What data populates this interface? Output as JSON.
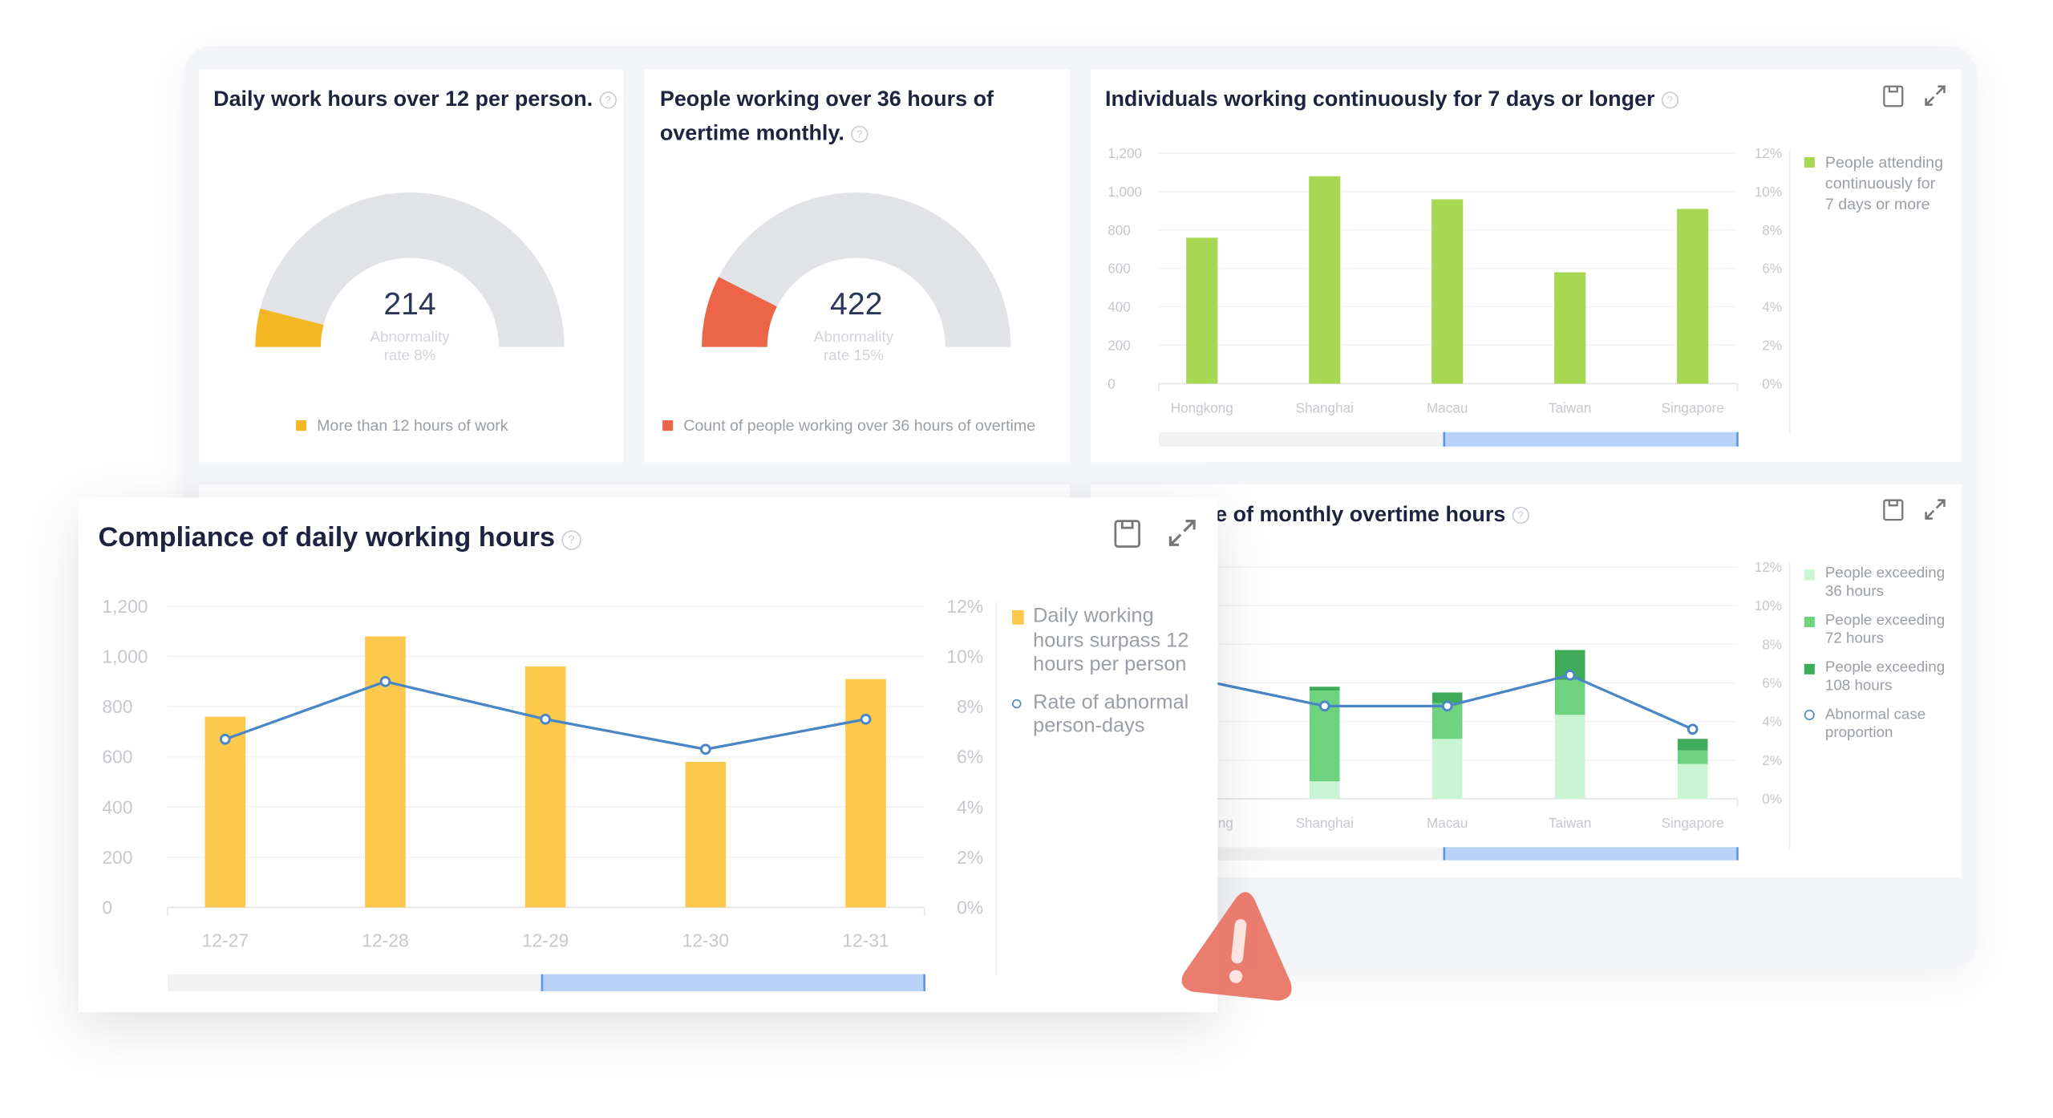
{
  "cards": {
    "daily_over_12": {
      "title": "Daily work hours over 12 per person.",
      "value": "214",
      "caption_line1": "Abnormality",
      "caption_line2": "rate 8%",
      "rate": 0.08,
      "legend": "More than 12 hours of work",
      "color": "#f4b723"
    },
    "overtime_36": {
      "title_line1": "People working over 36 hours of",
      "title_line2": "overtime monthly.",
      "value": "422",
      "caption_line1": "Abnormality",
      "caption_line2": "rate 15%",
      "rate": 0.15,
      "legend": "Count of people working over 36 hours of overtime",
      "color": "#ec6548"
    },
    "continuous_7days": {
      "title": "Individuals working continuously for 7 days or longer"
    },
    "monthly_overtime": {
      "title_visible": "e of monthly overtime hours"
    },
    "compliance": {
      "title": "Compliance of daily working hours"
    }
  },
  "icons": {
    "help": "?",
    "save": "save-icon",
    "expand": "expand-icon",
    "warning": "warning-icon"
  },
  "chart_data": [
    {
      "id": "continuous",
      "type": "bar",
      "categories": [
        "Hongkong",
        "Shanghai",
        "Macau",
        "Taiwan",
        "Singapore"
      ],
      "series": [
        {
          "name": "People attending continuously for 7 days or more",
          "values": [
            760,
            1080,
            960,
            580,
            910
          ],
          "color": "#a6d854"
        }
      ],
      "ylim": [
        0,
        1200
      ],
      "yticks": [
        "0",
        "200",
        "400",
        "600",
        "800",
        "1,000",
        "1,200"
      ],
      "y2lim": [
        0,
        12
      ],
      "y2ticks": [
        "0%",
        "2%",
        "4%",
        "6%",
        "8%",
        "10%",
        "12%"
      ],
      "grid": true,
      "legend": "right"
    },
    {
      "id": "overtime",
      "type": "bar",
      "stacked": true,
      "categories": [
        "Hongkong",
        "Shanghai",
        "Macau",
        "Taiwan",
        "Singapore"
      ],
      "series": [
        {
          "name": "People exceeding 36 hours",
          "values": [
            null,
            0.9,
            3.1,
            4.35,
            1.8
          ],
          "color": "#c9f5d3"
        },
        {
          "name": "People exceeding 72 hours",
          "values": [
            null,
            4.7,
            1.85,
            1.8,
            0.7
          ],
          "color": "#6dd37f"
        },
        {
          "name": "People exceeding 108 hours",
          "values": [
            null,
            0.2,
            0.55,
            1.55,
            0.6
          ],
          "color": "#3faa57"
        }
      ],
      "line": {
        "name": "Abnormal case proportion",
        "values": [
          null,
          4.8,
          4.8,
          6.4,
          3.6
        ],
        "color": "#4a86c5"
      },
      "y2lim": [
        0,
        12
      ],
      "y2ticks": [
        "0%",
        "2%",
        "4%",
        "6%",
        "8%",
        "10%",
        "12%"
      ],
      "grid": true,
      "legend": "right"
    },
    {
      "id": "compliance",
      "type": "bar",
      "categories": [
        "12-27",
        "12-28",
        "12-29",
        "12-30",
        "12-31"
      ],
      "series": [
        {
          "name": "Daily working hours surpass 12 hours per person",
          "values": [
            760,
            1080,
            960,
            580,
            910
          ],
          "color": "#fdc94c"
        }
      ],
      "line": {
        "name": "Rate of abnormal person-days",
        "values": [
          6.7,
          9.0,
          7.5,
          6.3,
          7.5
        ],
        "color": "#4a86c5"
      },
      "ylim": [
        0,
        1200
      ],
      "yticks": [
        "0",
        "200",
        "400",
        "600",
        "800",
        "1,000",
        "1,200"
      ],
      "y2lim": [
        0,
        12
      ],
      "y2ticks": [
        "0%",
        "2%",
        "4%",
        "6%",
        "8%",
        "10%",
        "12%"
      ],
      "grid": true,
      "legend": "right"
    }
  ]
}
